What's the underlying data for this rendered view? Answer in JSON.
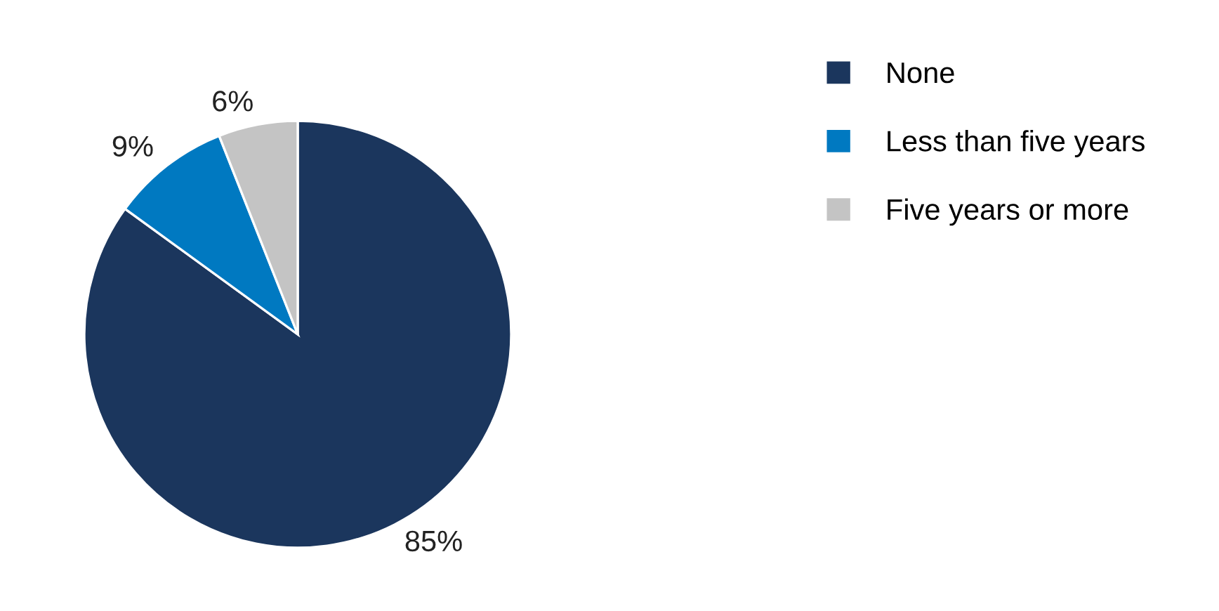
{
  "chart_data": {
    "type": "pie",
    "categories": [
      "None",
      "Less than five years",
      "Five years or more"
    ],
    "values": [
      85,
      9,
      6
    ],
    "colors": [
      "#1b365d",
      "#0079c1",
      "#c4c4c4"
    ],
    "value_labels": [
      "85%",
      "9%",
      "6%"
    ],
    "legend": "top right"
  }
}
